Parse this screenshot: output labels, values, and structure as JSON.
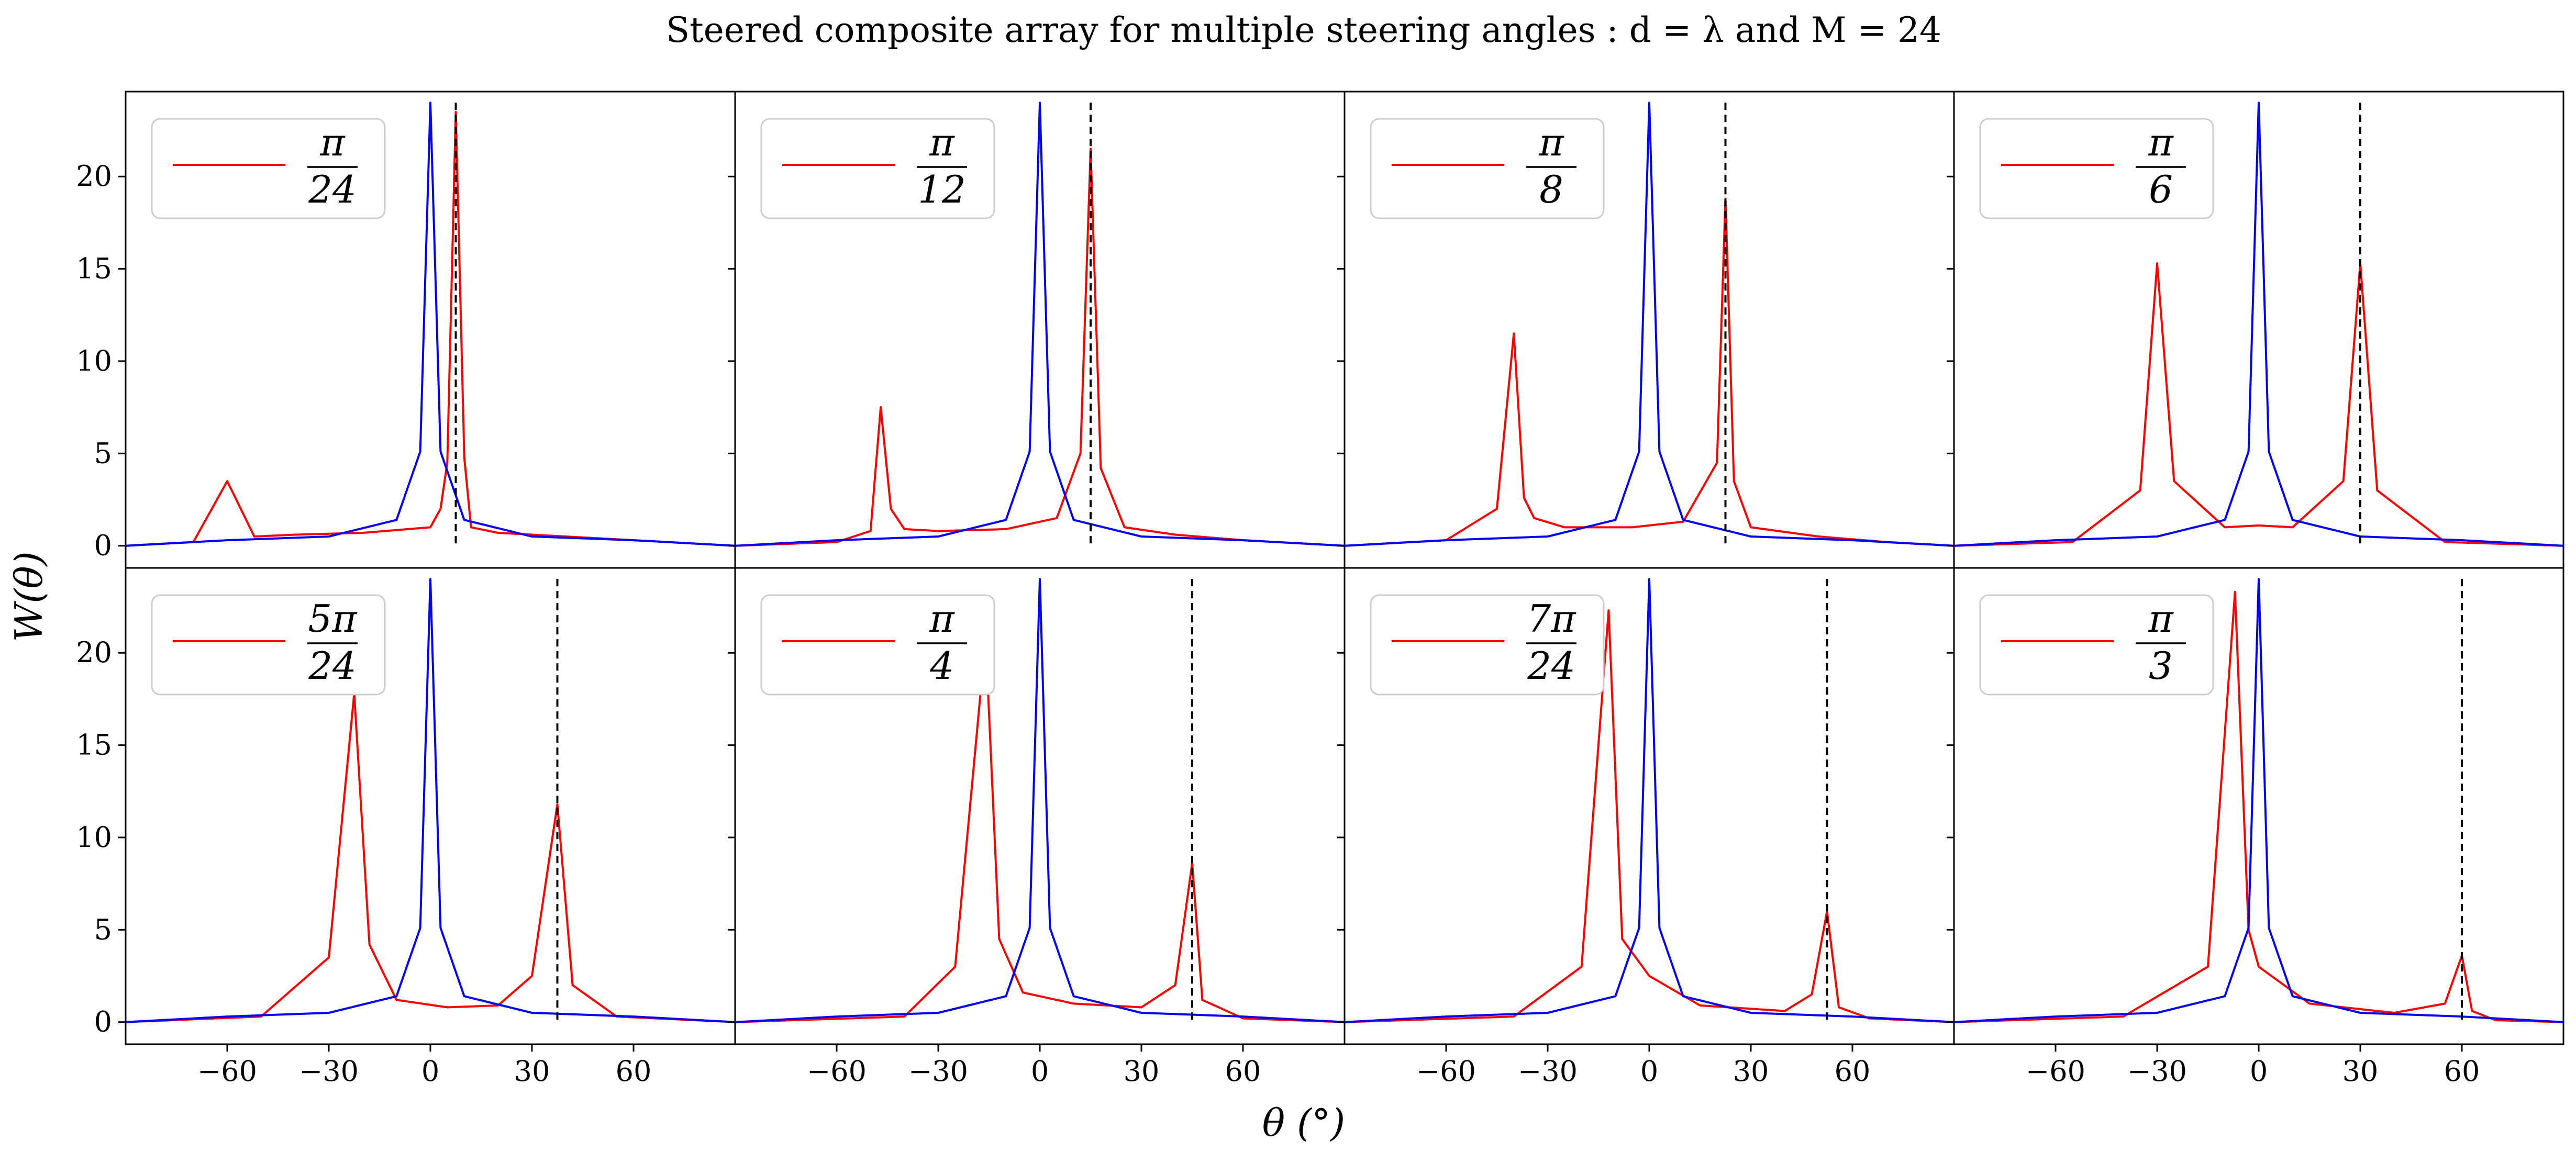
{
  "figure": {
    "title": "Steered composite array for multiple steering angles : d = λ and M = 24",
    "xlabel": "θ (°)",
    "ylabel": "W(θ)"
  },
  "colors": {
    "composite": "#ff0000",
    "broadside": "#0000ff",
    "steer_marker": "#000000"
  },
  "chart_data": [
    {
      "type": "line",
      "panel": 1,
      "steer_deg": 7.5,
      "legend": {
        "numerator": "π",
        "denominator": "24"
      },
      "xlim": [
        -90,
        90
      ],
      "ylim": [
        -1.2,
        24.6
      ],
      "xticks": [
        -60,
        -30,
        0,
        30,
        60
      ],
      "yticks": [
        0,
        5,
        10,
        15,
        20
      ],
      "series": [
        {
          "role": "composite",
          "x": [
            -90,
            -70,
            -60,
            -52,
            -40,
            -20,
            0,
            3,
            5,
            7.5,
            10,
            12,
            20,
            40,
            60,
            90
          ],
          "y": [
            0,
            0.2,
            3.5,
            0.5,
            0.6,
            0.7,
            1.0,
            2.0,
            4.5,
            23.5,
            4.8,
            1.0,
            0.7,
            0.5,
            0.3,
            0
          ]
        },
        {
          "role": "broadside",
          "x": [
            -90,
            -60,
            -30,
            -10,
            -3,
            0,
            3,
            10,
            30,
            60,
            90
          ],
          "y": [
            0,
            0.3,
            0.5,
            1.4,
            5.1,
            24,
            5.1,
            1.4,
            0.5,
            0.3,
            0
          ]
        }
      ]
    },
    {
      "type": "line",
      "panel": 2,
      "steer_deg": 15,
      "legend": {
        "numerator": "π",
        "denominator": "12"
      },
      "xlim": [
        -90,
        90
      ],
      "ylim": [
        -1.2,
        24.6
      ],
      "xticks": [
        -60,
        -30,
        0,
        30,
        60
      ],
      "yticks": [
        0,
        5,
        10,
        15,
        20
      ],
      "series": [
        {
          "role": "composite",
          "x": [
            -90,
            -60,
            -50,
            -47,
            -44,
            -40,
            -30,
            -10,
            5,
            12,
            15,
            18,
            25,
            40,
            60,
            90
          ],
          "y": [
            0,
            0.2,
            0.8,
            7.5,
            2.0,
            0.9,
            0.8,
            0.9,
            1.5,
            5.0,
            21.5,
            4.2,
            1.0,
            0.6,
            0.3,
            0
          ],
          "y_note": "red peak at steer angle"
        },
        {
          "role": "broadside",
          "x": [
            -90,
            -60,
            -30,
            -10,
            -3,
            0,
            3,
            10,
            30,
            60,
            90
          ],
          "y": [
            0,
            0.3,
            0.5,
            1.4,
            5.1,
            24,
            5.1,
            1.4,
            0.5,
            0.3,
            0
          ]
        }
      ]
    },
    {
      "type": "line",
      "panel": 3,
      "steer_deg": 22.5,
      "legend": {
        "numerator": "π",
        "denominator": "8"
      },
      "xlim": [
        -90,
        90
      ],
      "ylim": [
        -1.2,
        24.6
      ],
      "xticks": [
        -60,
        -30,
        0,
        30,
        60
      ],
      "yticks": [
        0,
        5,
        10,
        15,
        20
      ],
      "series": [
        {
          "role": "composite",
          "x": [
            -90,
            -60,
            -45,
            -40,
            -37,
            -34,
            -25,
            -5,
            10,
            20,
            22.5,
            25,
            30,
            50,
            70,
            90
          ],
          "y": [
            0,
            0.3,
            2.0,
            11.5,
            2.6,
            1.5,
            1.0,
            1.0,
            1.3,
            4.5,
            18.8,
            3.5,
            1.0,
            0.5,
            0.2,
            0
          ]
        },
        {
          "role": "broadside",
          "x": [
            -90,
            -60,
            -30,
            -10,
            -3,
            0,
            3,
            10,
            30,
            60,
            90
          ],
          "y": [
            0,
            0.3,
            0.5,
            1.4,
            5.1,
            24,
            5.1,
            1.4,
            0.5,
            0.3,
            0
          ]
        }
      ]
    },
    {
      "type": "line",
      "panel": 4,
      "steer_deg": 30,
      "legend": {
        "numerator": "π",
        "denominator": "6"
      },
      "xlim": [
        -90,
        90
      ],
      "ylim": [
        -1.2,
        24.6
      ],
      "xticks": [
        -60,
        -30,
        0,
        30,
        60
      ],
      "yticks": [
        0,
        5,
        10,
        15,
        20
      ],
      "series": [
        {
          "role": "composite",
          "x": [
            -90,
            -55,
            -35,
            -30,
            -25,
            -10,
            0,
            10,
            25,
            30,
            35,
            55,
            90
          ],
          "y": [
            0,
            0.2,
            3.0,
            15.3,
            3.5,
            1.0,
            1.1,
            1.0,
            3.5,
            15.3,
            3.0,
            0.2,
            0
          ]
        },
        {
          "role": "broadside",
          "x": [
            -90,
            -60,
            -30,
            -10,
            -3,
            0,
            3,
            10,
            30,
            60,
            90
          ],
          "y": [
            0,
            0.3,
            0.5,
            1.4,
            5.1,
            24,
            5.1,
            1.4,
            0.5,
            0.3,
            0
          ]
        }
      ]
    },
    {
      "type": "line",
      "panel": 5,
      "steer_deg": 37.5,
      "legend": {
        "numerator": "5π",
        "denominator": "24"
      },
      "xlim": [
        -90,
        90
      ],
      "ylim": [
        -1.2,
        24.6
      ],
      "xticks": [
        -60,
        -30,
        0,
        30,
        60
      ],
      "yticks": [
        0,
        5,
        10,
        15,
        20
      ],
      "series": [
        {
          "role": "composite",
          "x": [
            -90,
            -50,
            -30,
            -22.5,
            -18,
            -10,
            5,
            20,
            30,
            37.5,
            42,
            55,
            90
          ],
          "y": [
            0,
            0.3,
            3.5,
            17.8,
            4.2,
            1.2,
            0.8,
            0.9,
            2.5,
            11.8,
            2.0,
            0.3,
            0
          ]
        },
        {
          "role": "broadside",
          "x": [
            -90,
            -60,
            -30,
            -10,
            -3,
            0,
            3,
            10,
            30,
            60,
            90
          ],
          "y": [
            0,
            0.3,
            0.5,
            1.4,
            5.1,
            24,
            5.1,
            1.4,
            0.5,
            0.3,
            0
          ]
        }
      ]
    },
    {
      "type": "line",
      "panel": 6,
      "steer_deg": 45,
      "legend": {
        "numerator": "π",
        "denominator": "4"
      },
      "xlim": [
        -90,
        90
      ],
      "ylim": [
        -1.2,
        24.6
      ],
      "xticks": [
        -60,
        -30,
        0,
        30,
        60
      ],
      "yticks": [
        0,
        5,
        10,
        15,
        20
      ],
      "series": [
        {
          "role": "composite",
          "x": [
            -90,
            -40,
            -25,
            -16,
            -12,
            -5,
            10,
            30,
            40,
            45,
            48,
            60,
            90
          ],
          "y": [
            0,
            0.3,
            3.0,
            20.8,
            4.5,
            1.6,
            1.0,
            0.8,
            2.0,
            8.6,
            1.2,
            0.2,
            0
          ]
        },
        {
          "role": "broadside",
          "x": [
            -90,
            -60,
            -30,
            -10,
            -3,
            0,
            3,
            10,
            30,
            60,
            90
          ],
          "y": [
            0,
            0.3,
            0.5,
            1.4,
            5.1,
            24,
            5.1,
            1.4,
            0.5,
            0.3,
            0
          ]
        }
      ]
    },
    {
      "type": "line",
      "panel": 7,
      "steer_deg": 52.5,
      "legend": {
        "numerator": "7π",
        "denominator": "24"
      },
      "xlim": [
        -90,
        90
      ],
      "ylim": [
        -1.2,
        24.6
      ],
      "xticks": [
        -60,
        -30,
        0,
        30,
        60
      ],
      "yticks": [
        0,
        5,
        10,
        15,
        20
      ],
      "series": [
        {
          "role": "composite",
          "x": [
            -90,
            -40,
            -20,
            -12,
            -8,
            0,
            15,
            40,
            48,
            52.5,
            56,
            65,
            90
          ],
          "y": [
            0,
            0.3,
            3.0,
            22.3,
            4.5,
            2.5,
            0.9,
            0.6,
            1.5,
            6.0,
            0.8,
            0.2,
            0
          ]
        },
        {
          "role": "broadside",
          "x": [
            -90,
            -60,
            -30,
            -10,
            -3,
            0,
            3,
            10,
            30,
            60,
            90
          ],
          "y": [
            0,
            0.3,
            0.5,
            1.4,
            5.1,
            24,
            5.1,
            1.4,
            0.5,
            0.3,
            0
          ]
        }
      ]
    },
    {
      "type": "line",
      "panel": 8,
      "steer_deg": 60,
      "legend": {
        "numerator": "π",
        "denominator": "3"
      },
      "xlim": [
        -90,
        90
      ],
      "ylim": [
        -1.2,
        24.6
      ],
      "xticks": [
        -60,
        -30,
        0,
        30,
        60
      ],
      "yticks": [
        0,
        5,
        10,
        15,
        20
      ],
      "series": [
        {
          "role": "composite",
          "x": [
            -90,
            -40,
            -15,
            -7,
            -3,
            0,
            15,
            40,
            55,
            60,
            63,
            70,
            90
          ],
          "y": [
            0,
            0.3,
            3.0,
            23.3,
            5.0,
            3.0,
            1.0,
            0.5,
            1.0,
            3.6,
            0.6,
            0.1,
            0
          ]
        },
        {
          "role": "broadside",
          "x": [
            -90,
            -60,
            -30,
            -10,
            -3,
            0,
            3,
            10,
            30,
            60,
            90
          ],
          "y": [
            0,
            0.3,
            0.5,
            1.4,
            5.1,
            24,
            5.1,
            1.4,
            0.5,
            0.3,
            0
          ]
        }
      ]
    }
  ]
}
